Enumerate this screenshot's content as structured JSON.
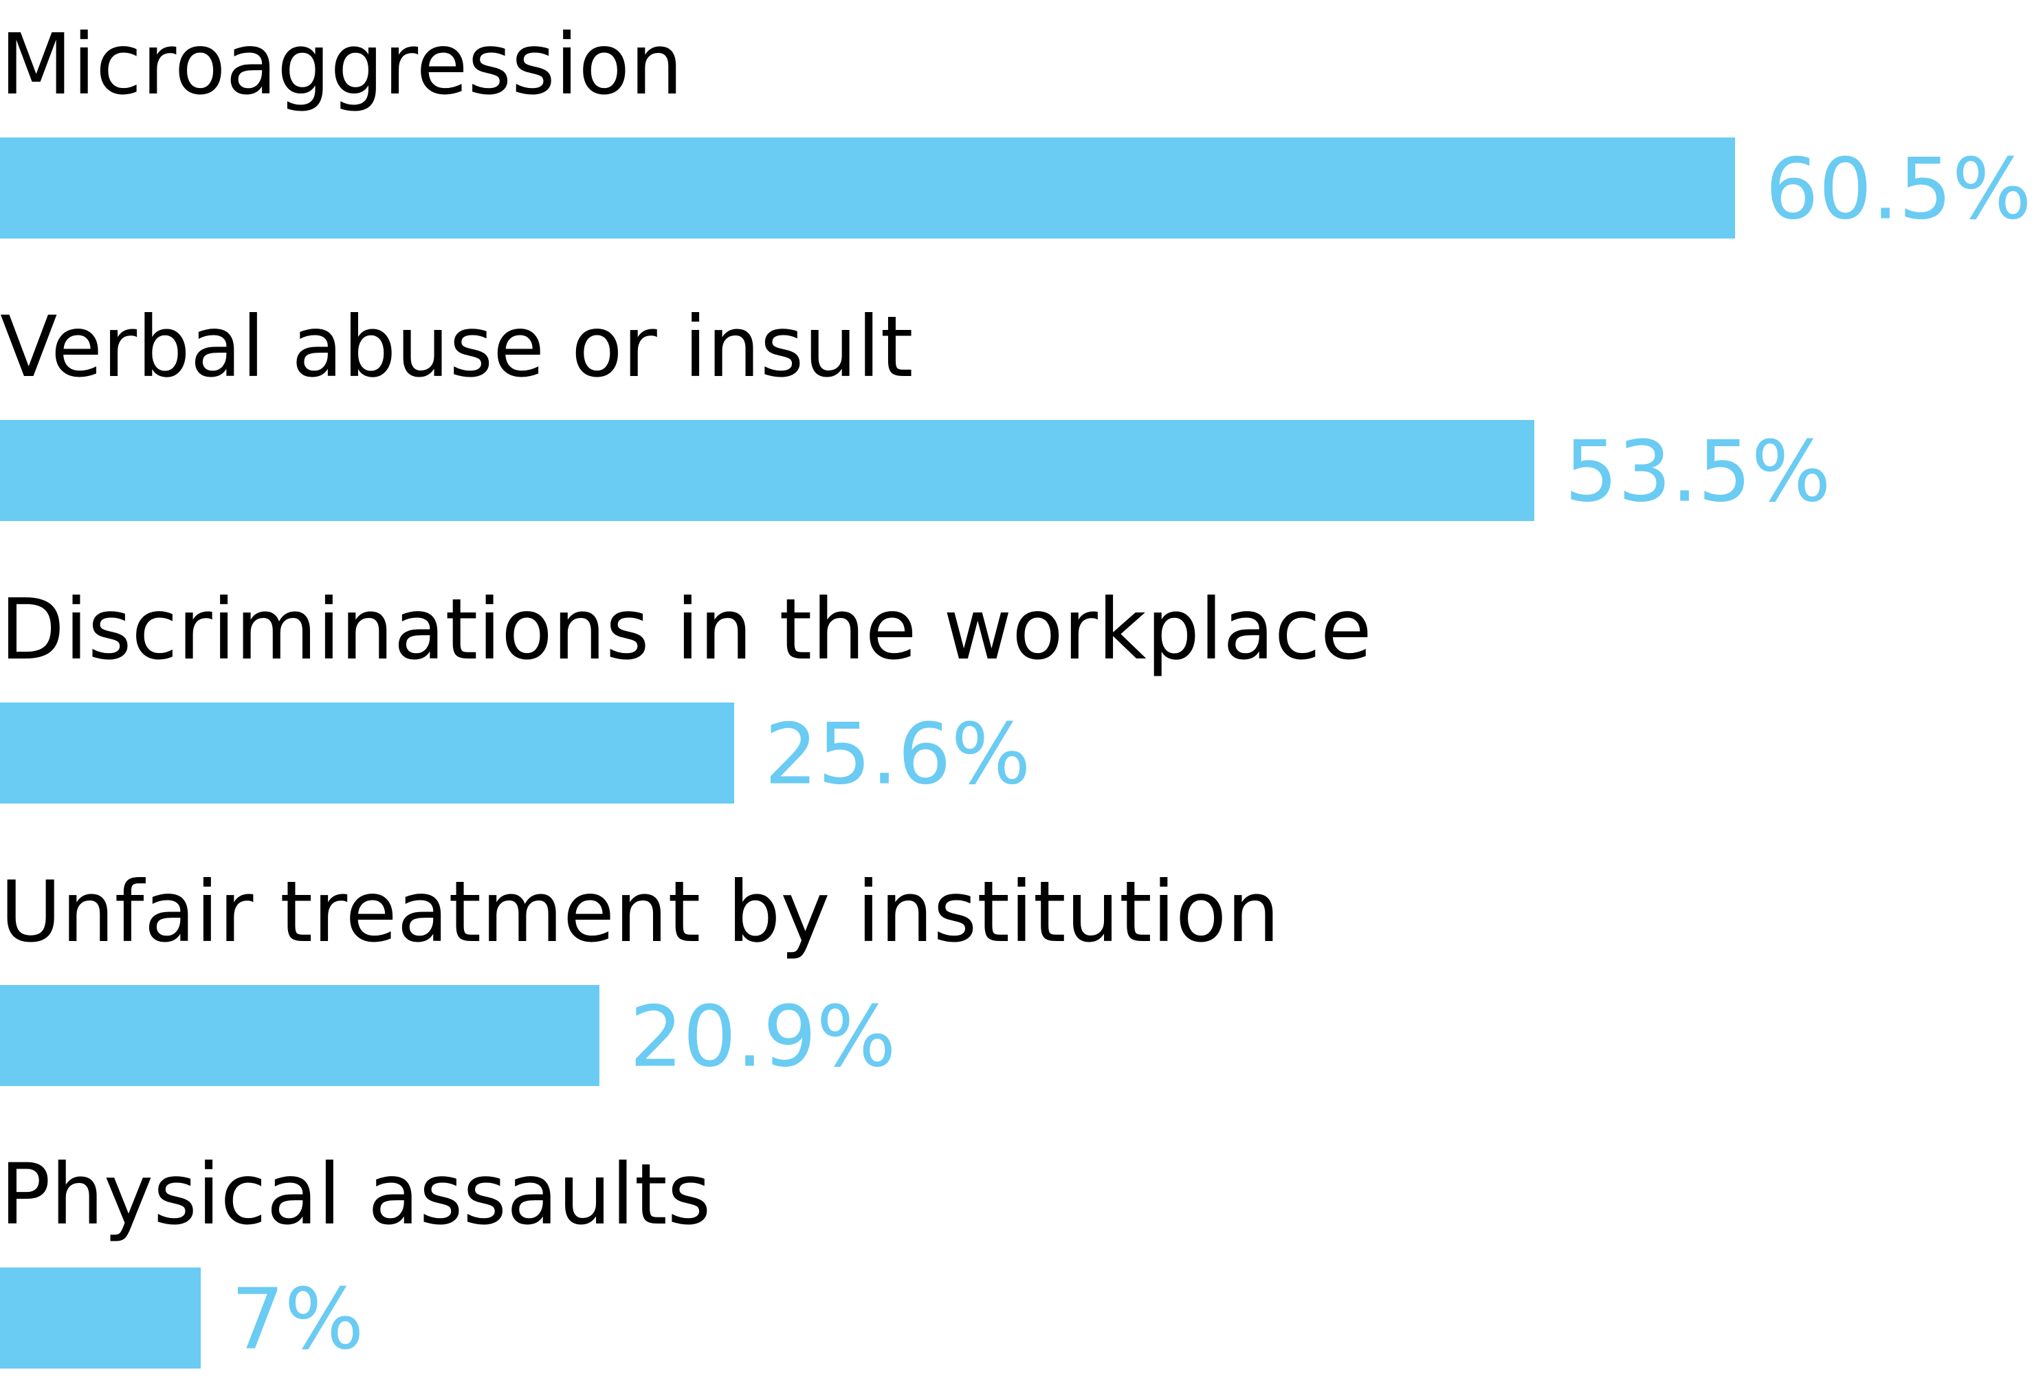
{
  "chart_data": {
    "type": "bar",
    "orientation": "horizontal",
    "categories": [
      "Microaggression",
      "Verbal abuse or insult",
      "Discriminations in the workplace",
      "Unfair treatment by institution",
      "Physical assaults"
    ],
    "values": [
      60.5,
      53.5,
      25.6,
      20.9,
      7
    ],
    "value_labels": [
      "60.5%",
      "53.5%",
      "25.6%",
      "20.9%",
      "7%"
    ],
    "color": "#6acbf3"
  }
}
